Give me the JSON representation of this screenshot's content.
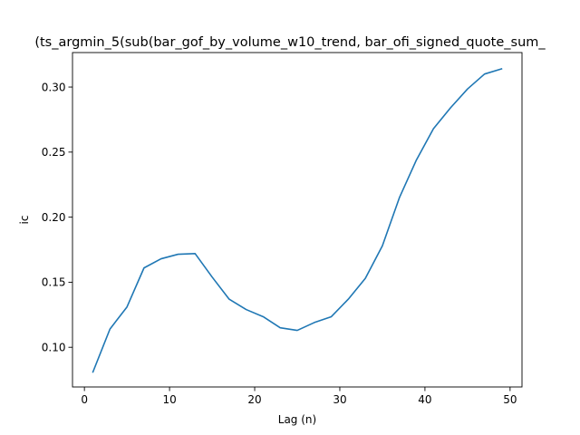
{
  "chart_data": {
    "type": "line",
    "title": "(ts_argmin_5(sub(bar_gof_by_volume_w10_trend, bar_ofi_signed_quote_sum_",
    "xlabel": "Lag (n)",
    "ylabel": "ic",
    "xlim": [
      -1.4,
      51.4
    ],
    "ylim": [
      0.0695,
      0.3265
    ],
    "xticks": [
      0,
      10,
      20,
      30,
      40,
      50
    ],
    "yticks": [
      0.1,
      0.15,
      0.2,
      0.25,
      0.3
    ],
    "xtick_labels": [
      "0",
      "10",
      "20",
      "30",
      "40",
      "50"
    ],
    "ytick_labels": [
      "0.10",
      "0.15",
      "0.20",
      "0.25",
      "0.30"
    ],
    "grid": false,
    "series": [
      {
        "color": "#1f77b4",
        "x": [
          1,
          3,
          5,
          7,
          9,
          11,
          13,
          15,
          17,
          19,
          21,
          23,
          25,
          27,
          29,
          31,
          33,
          35,
          37,
          39,
          41,
          43,
          45,
          47,
          49
        ],
        "y": [
          0.081,
          0.114,
          0.131,
          0.161,
          0.168,
          0.1715,
          0.172,
          0.154,
          0.137,
          0.129,
          0.1235,
          0.115,
          0.113,
          0.119,
          0.1235,
          0.137,
          0.153,
          0.178,
          0.215,
          0.244,
          0.268,
          0.284,
          0.2985,
          0.31,
          0.314
        ]
      }
    ]
  }
}
